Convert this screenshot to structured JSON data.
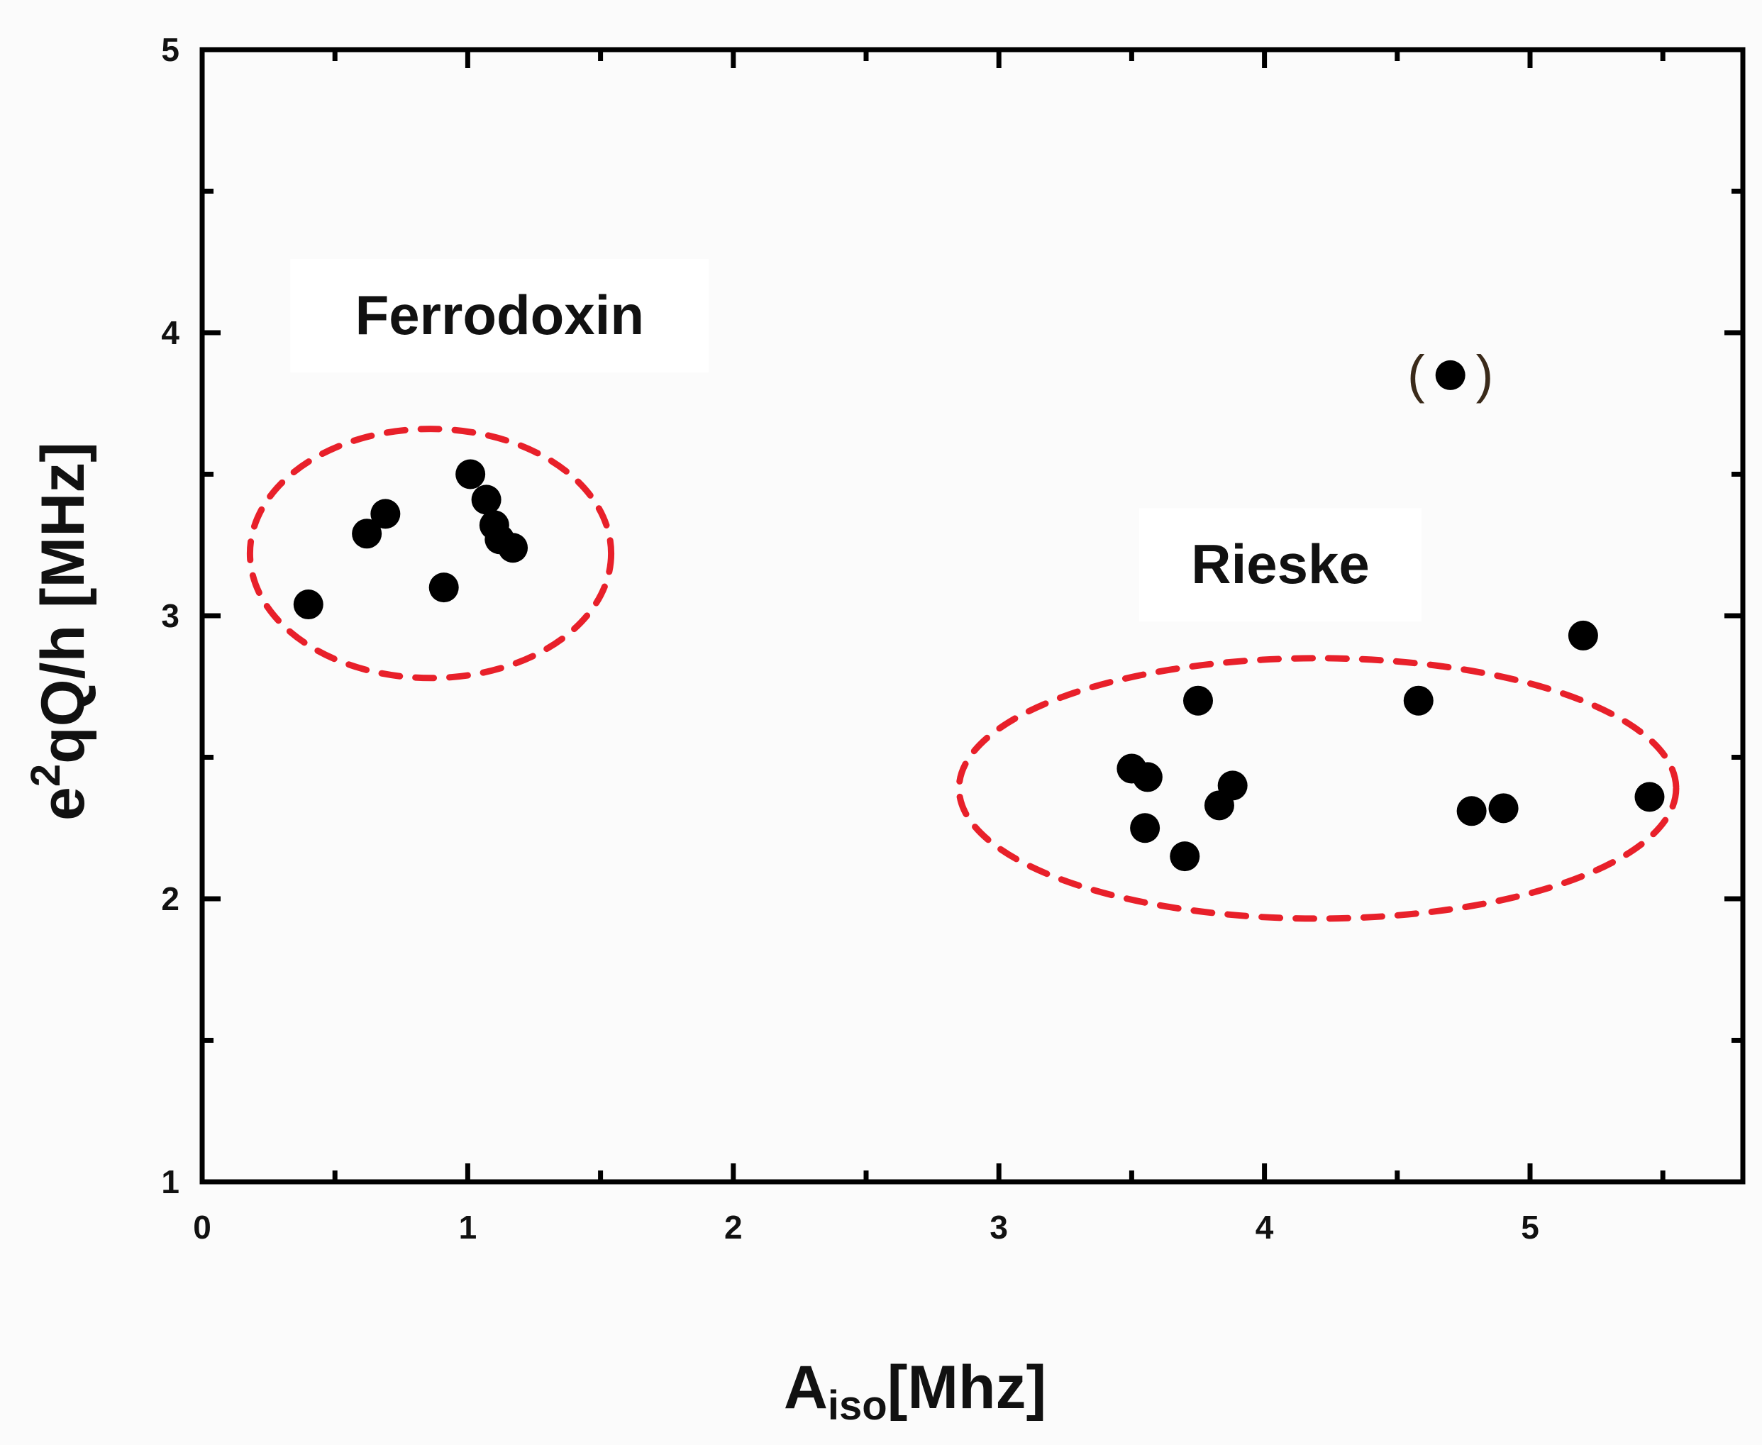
{
  "chart_data": {
    "type": "scatter",
    "xlabel_main": "A",
    "xlabel_sub": "iso",
    "xlabel_rest": "[Mhz]",
    "ylabel_pre": "e",
    "ylabel_sup": "2",
    "ylabel_rest": "qQ/h [MHz]",
    "xlim": [
      0,
      5.8
    ],
    "ylim": [
      1,
      5
    ],
    "xticks": [
      0,
      1,
      2,
      3,
      4,
      5
    ],
    "yticks": [
      1,
      2,
      3,
      4,
      5
    ],
    "x_minor_step": 0.5,
    "y_minor_step": 0.5,
    "grid": false,
    "annotations": [
      {
        "text": "Ferrodoxin",
        "x": 1.12,
        "y": 4.06
      },
      {
        "text": "Rieske",
        "x": 4.06,
        "y": 3.18
      }
    ],
    "regions": [
      {
        "name": "Ferrodoxin",
        "cx": 0.86,
        "cy": 3.22,
        "rx": 0.68,
        "ry": 0.44
      },
      {
        "name": "Rieske",
        "cx": 4.2,
        "cy": 2.39,
        "rx": 1.35,
        "ry": 0.46
      }
    ],
    "series": [
      {
        "points": [
          [
            0.4,
            3.04
          ],
          [
            0.62,
            3.29
          ],
          [
            0.69,
            3.36
          ],
          [
            0.91,
            3.1
          ],
          [
            1.01,
            3.5
          ],
          [
            1.07,
            3.41
          ],
          [
            1.1,
            3.32
          ],
          [
            1.12,
            3.27
          ],
          [
            1.17,
            3.24
          ],
          [
            3.5,
            2.46
          ],
          [
            3.56,
            2.43
          ],
          [
            3.55,
            2.25
          ],
          [
            3.7,
            2.15
          ],
          [
            3.75,
            2.7
          ],
          [
            3.83,
            2.33
          ],
          [
            3.88,
            2.4
          ],
          [
            4.58,
            2.7
          ],
          [
            4.78,
            2.31
          ],
          [
            4.9,
            2.32
          ],
          [
            5.2,
            2.93
          ],
          [
            5.45,
            2.36
          ]
        ]
      }
    ],
    "bracketed_point": {
      "x": 4.7,
      "y": 3.85,
      "open": "(",
      "close": ")"
    },
    "colors": {
      "marker": "#000000",
      "region": "#e8202a",
      "axis": "#000000"
    }
  }
}
